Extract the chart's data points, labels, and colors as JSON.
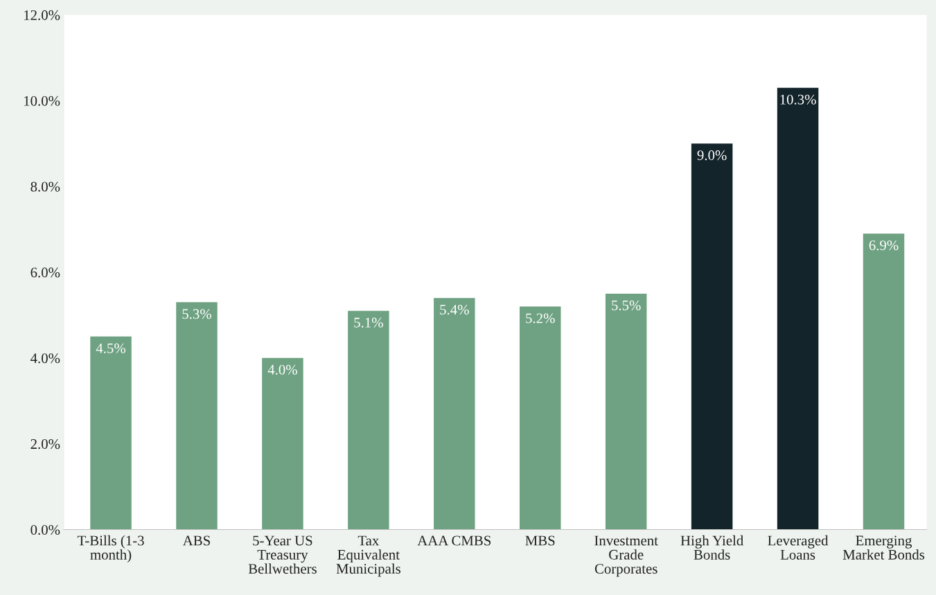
{
  "chart_data": {
    "type": "bar",
    "categories": [
      "T-Bills (1-3 month)",
      "ABS",
      "5-Year US Treasury Bellwethers",
      "Tax Equivalent Municipals",
      "AAA CMBS",
      "MBS",
      "Investment Grade Corporates",
      "High Yield Bonds",
      "Leveraged Loans",
      "Emerging Market Bonds"
    ],
    "values": [
      4.5,
      5.3,
      4.0,
      5.1,
      5.4,
      5.2,
      5.5,
      9.0,
      10.3,
      6.9
    ],
    "colors": [
      "#6fa283",
      "#6fa283",
      "#6fa283",
      "#6fa283",
      "#6fa283",
      "#6fa283",
      "#6fa283",
      "#13242a",
      "#13242a",
      "#6fa283"
    ],
    "value_labels": [
      "4.5%",
      "5.3%",
      "4.0%",
      "5.1%",
      "5.4%",
      "5.2%",
      "5.5%",
      "9.0%",
      "10.3%",
      "6.9%"
    ],
    "ylim": [
      0,
      12
    ],
    "yticks": [
      {
        "value": 0,
        "label": "0.0%"
      },
      {
        "value": 2,
        "label": "2.0%"
      },
      {
        "value": 4,
        "label": "4.0%"
      },
      {
        "value": 6,
        "label": "6.0%"
      },
      {
        "value": 8,
        "label": "8.0%"
      },
      {
        "value": 10,
        "label": "10.0%"
      },
      {
        "value": 12,
        "label": "12.0%"
      }
    ],
    "grid": false
  }
}
